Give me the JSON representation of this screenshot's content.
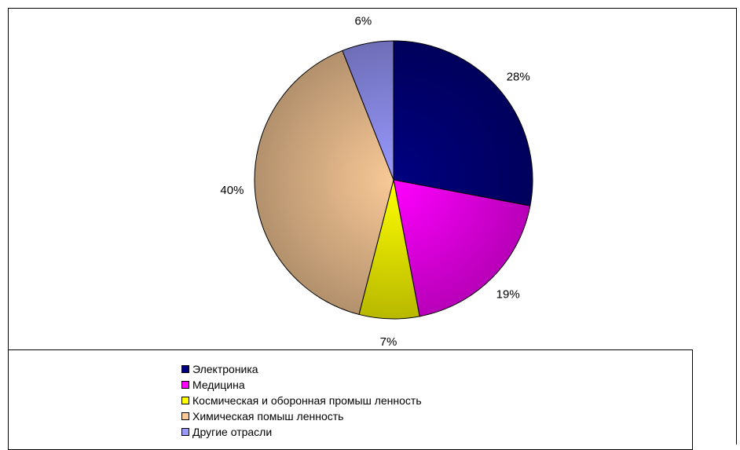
{
  "chart_data": {
    "type": "pie",
    "categories": [
      "Электроника",
      "Медицина",
      "Космическая и оборонная промыш ленность",
      "Химическая помыш ленность",
      "Другие отрасли"
    ],
    "values": [
      28,
      19,
      7,
      40,
      6
    ],
    "labels": [
      "28%",
      "19%",
      "7%",
      "40%",
      "6%"
    ],
    "colors": [
      "#000080",
      "#ff00ff",
      "#ffff00",
      "#f9c997",
      "#9999ff"
    ],
    "start_angle": "12 o'clock",
    "direction": "clockwise",
    "legend_position": "bottom"
  }
}
